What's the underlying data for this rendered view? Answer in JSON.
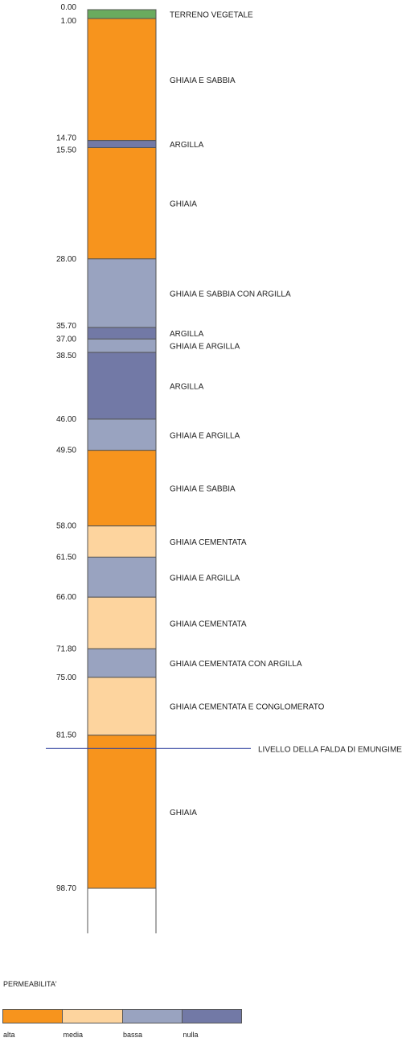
{
  "colors": {
    "vegetale": "#6aab5e",
    "alta": "#f7941d",
    "media": "#fdd49e",
    "bassa": "#99a3c0",
    "nulla": "#7279a6",
    "outline": "#555555",
    "water_line": "#2e3f9e"
  },
  "column": {
    "total_depth": 98.7,
    "layers": [
      {
        "top": "0.00",
        "bottom": "1.00",
        "name": "TERRENO VEGETALE",
        "permeability": "vegetale"
      },
      {
        "top": "1.00",
        "bottom": "14.70",
        "name": "GHIAIA E SABBIA",
        "permeability": "alta"
      },
      {
        "top": "14.70",
        "bottom": "15.50",
        "name": "ARGILLA",
        "permeability": "nulla"
      },
      {
        "top": "15.50",
        "bottom": "28.00",
        "name": "GHIAIA",
        "permeability": "alta"
      },
      {
        "top": "28.00",
        "bottom": "35.70",
        "name": "GHIAIA E SABBIA CON ARGILLA",
        "permeability": "bassa"
      },
      {
        "top": "35.70",
        "bottom": "37.00",
        "name": "ARGILLA",
        "permeability": "nulla"
      },
      {
        "top": "37.00",
        "bottom": "38.50",
        "name": "GHIAIA E ARGILLA",
        "permeability": "bassa"
      },
      {
        "top": "38.50",
        "bottom": "46.00",
        "name": "ARGILLA",
        "permeability": "nulla"
      },
      {
        "top": "46.00",
        "bottom": "49.50",
        "name": "GHIAIA E ARGILLA",
        "permeability": "bassa"
      },
      {
        "top": "49.50",
        "bottom": "58.00",
        "name": "GHIAIA E SABBIA",
        "permeability": "alta"
      },
      {
        "top": "58.00",
        "bottom": "61.50",
        "name": "GHIAIA CEMENTATA",
        "permeability": "media"
      },
      {
        "top": "61.50",
        "bottom": "66.00",
        "name": "GHIAIA E ARGILLA",
        "permeability": "bassa"
      },
      {
        "top": "66.00",
        "bottom": "71.80",
        "name": "GHIAIA CEMENTATA",
        "permeability": "media"
      },
      {
        "top": "71.80",
        "bottom": "75.00",
        "name": "GHIAIA CEMENTATA CON ARGILLA",
        "permeability": "bassa"
      },
      {
        "top": "75.00",
        "bottom": "81.50",
        "name": "GHIAIA CEMENTATA E CONGLOMERATO",
        "permeability": "media"
      },
      {
        "top": "81.50",
        "bottom": "98.70",
        "name": "GHIAIA",
        "permeability": "alta"
      }
    ],
    "depth_labels": [
      "0.00",
      "1.00",
      "14.70",
      "15.50",
      "28.00",
      "35.70",
      "37.00",
      "38.50",
      "46.00",
      "49.50",
      "58.00",
      "61.50",
      "66.00",
      "71.80",
      "75.00",
      "81.50",
      "98.70"
    ],
    "water_table": {
      "depth": 83.0,
      "label": "LIVELLO DELLA FALDA DI EMUNGIMENTO"
    }
  },
  "legend": {
    "title": "PERMEABILITA'",
    "items": [
      {
        "key": "alta",
        "label": "alta"
      },
      {
        "key": "media",
        "label": "media"
      },
      {
        "key": "bassa",
        "label": "bassa"
      },
      {
        "key": "nulla",
        "label": "nulla"
      }
    ]
  }
}
